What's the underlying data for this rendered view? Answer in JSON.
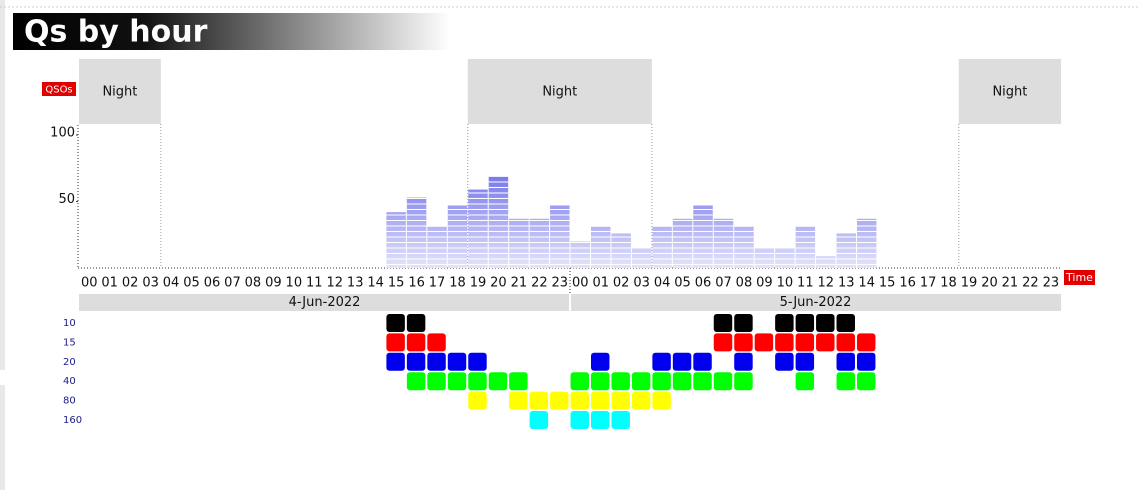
{
  "header": {
    "title": "Qs by hour"
  },
  "chart_data": {
    "type": "bar",
    "y_label": "QSOs",
    "x_label": "Time",
    "categories": [
      "00",
      "01",
      "02",
      "03",
      "04",
      "05",
      "06",
      "07",
      "08",
      "09",
      "10",
      "11",
      "12",
      "13",
      "14",
      "15",
      "16",
      "17",
      "18",
      "19",
      "20",
      "21",
      "22",
      "23",
      "00",
      "01",
      "02",
      "03",
      "04",
      "05",
      "06",
      "07",
      "08",
      "09",
      "10",
      "11",
      "12",
      "13",
      "14",
      "15",
      "16",
      "17",
      "18",
      "19",
      "20",
      "21",
      "22",
      "23"
    ],
    "values": [
      null,
      null,
      null,
      null,
      null,
      null,
      null,
      null,
      null,
      null,
      null,
      null,
      null,
      null,
      null,
      42,
      53,
      31,
      47,
      59,
      69,
      37,
      37,
      47,
      20,
      31,
      26,
      15,
      31,
      37,
      47,
      37,
      31,
      15,
      15,
      31,
      9,
      26,
      37,
      null,
      null,
      null,
      null,
      null,
      null,
      null,
      null,
      null
    ],
    "ylim": [
      0,
      100
    ],
    "yticks": [
      50,
      100
    ],
    "nights": [
      {
        "label": "Night",
        "start": 0,
        "end": 4
      },
      {
        "label": "Night",
        "start": 19,
        "end": 28
      },
      {
        "label": "Night",
        "start": 43,
        "end": 48
      }
    ],
    "dates": [
      {
        "label": "4-Jun-2022",
        "start": 0,
        "end": 24
      },
      {
        "label": "5-Jun-2022",
        "start": 24,
        "end": 48
      }
    ],
    "bands": [
      {
        "label": "10",
        "color": "#000000",
        "hours": [
          15,
          16,
          31,
          32,
          34,
          35,
          36,
          37
        ]
      },
      {
        "label": "15",
        "color": "#ff0000",
        "hours": [
          15,
          16,
          17,
          31,
          32,
          33,
          34,
          35,
          36,
          37,
          38
        ]
      },
      {
        "label": "20",
        "color": "#0000ee",
        "hours": [
          15,
          16,
          17,
          18,
          19,
          25,
          28,
          29,
          30,
          32,
          34,
          35,
          37,
          38
        ]
      },
      {
        "label": "40",
        "color": "#00ff00",
        "hours": [
          16,
          17,
          18,
          19,
          20,
          21,
          24,
          25,
          26,
          27,
          28,
          29,
          30,
          31,
          32,
          35,
          37,
          38
        ]
      },
      {
        "label": "80",
        "color": "#ffff00",
        "hours": [
          19,
          21,
          22,
          23,
          24,
          25,
          26,
          27,
          28
        ]
      },
      {
        "label": "160",
        "color": "#00ffff",
        "hours": [
          22,
          24,
          25,
          26
        ]
      }
    ]
  }
}
